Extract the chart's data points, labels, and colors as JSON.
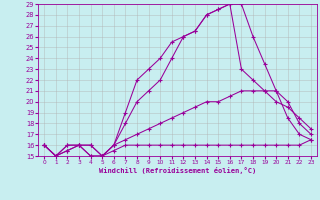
{
  "xlabel": "Windchill (Refroidissement éolien,°C)",
  "bg_color": "#c8eef0",
  "grid_color": "#b0b0b0",
  "line_color": "#990099",
  "xlim": [
    -0.5,
    23.5
  ],
  "ylim": [
    15,
    29
  ],
  "xticks": [
    0,
    1,
    2,
    3,
    4,
    5,
    6,
    7,
    8,
    9,
    10,
    11,
    12,
    13,
    14,
    15,
    16,
    17,
    18,
    19,
    20,
    21,
    22,
    23
  ],
  "yticks": [
    15,
    16,
    17,
    18,
    19,
    20,
    21,
    22,
    23,
    24,
    25,
    26,
    27,
    28,
    29
  ],
  "lines": [
    {
      "x": [
        0,
        1,
        2,
        3,
        4,
        5,
        6,
        7,
        8,
        9,
        10,
        11,
        12,
        13,
        14,
        15,
        16,
        17,
        18,
        19,
        20,
        21,
        22,
        23
      ],
      "y": [
        16,
        15,
        16,
        16,
        15,
        15,
        16,
        18,
        20,
        21,
        22,
        24,
        26,
        26.5,
        28,
        28.5,
        29,
        29,
        26,
        23.5,
        21,
        18.5,
        17,
        16.5
      ]
    },
    {
      "x": [
        0,
        1,
        2,
        3,
        4,
        5,
        6,
        7,
        8,
        9,
        10,
        11,
        12,
        13,
        14,
        15,
        16,
        17,
        18,
        19,
        20,
        21,
        22,
        23
      ],
      "y": [
        16,
        15,
        16,
        16,
        15,
        15,
        16,
        19,
        22,
        23,
        24,
        25.5,
        26,
        26.5,
        28,
        28.5,
        29,
        23,
        22,
        21,
        20,
        19.5,
        18.5,
        17.5
      ]
    },
    {
      "x": [
        0,
        1,
        2,
        3,
        4,
        5,
        6,
        7,
        8,
        9,
        10,
        11,
        12,
        13,
        14,
        15,
        16,
        17,
        18,
        19,
        20,
        21,
        22,
        23
      ],
      "y": [
        16,
        15,
        15.5,
        16,
        16,
        15,
        16,
        16.5,
        17,
        17.5,
        18,
        18.5,
        19,
        19.5,
        20,
        20,
        20.5,
        21,
        21,
        21,
        21,
        20,
        18,
        17
      ]
    },
    {
      "x": [
        0,
        1,
        2,
        3,
        4,
        5,
        6,
        7,
        8,
        9,
        10,
        11,
        12,
        13,
        14,
        15,
        16,
        17,
        18,
        19,
        20,
        21,
        22,
        23
      ],
      "y": [
        16,
        15,
        15.5,
        16,
        16,
        15,
        15.5,
        16,
        16,
        16,
        16,
        16,
        16,
        16,
        16,
        16,
        16,
        16,
        16,
        16,
        16,
        16,
        16,
        16.5
      ]
    }
  ]
}
